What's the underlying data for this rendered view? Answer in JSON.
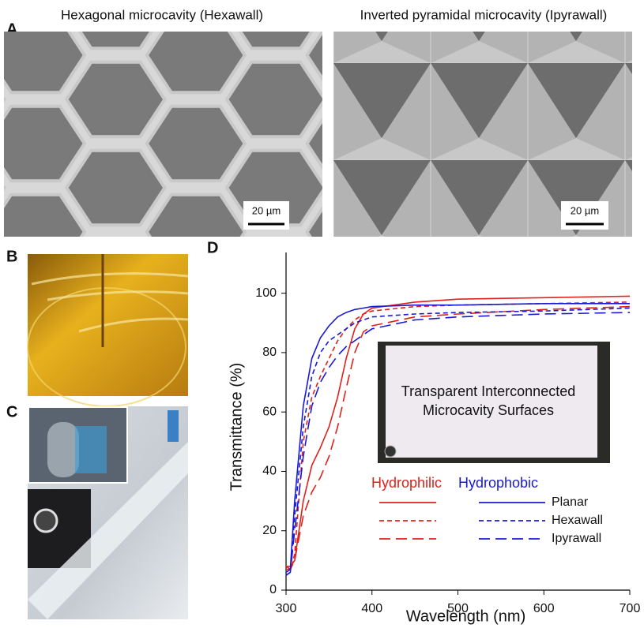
{
  "panels": {
    "a": {
      "label": "A",
      "left_title": "Hexagonal microcavity (Hexawall)",
      "right_title": "Inverted pyramidal microcavity (Ipyrawall)",
      "scale_bars": [
        "20 µm",
        "20 µm"
      ]
    },
    "b": {
      "label": "B"
    },
    "c": {
      "label": "C"
    },
    "d": {
      "label": "D"
    }
  },
  "chart_data": {
    "type": "line",
    "x_label": "Wavelength (nm)",
    "y_label": "Transmittance (%)",
    "annotation": [
      "Transparent Interconnected",
      "Microcavity Surfaces"
    ],
    "legend_columns": [
      "Hydrophilic",
      "Hydrophobic"
    ],
    "x": [
      300,
      305,
      310,
      320,
      330,
      340,
      350,
      360,
      370,
      380,
      390,
      400,
      450,
      500,
      600,
      700
    ],
    "xlim": [
      300,
      700
    ],
    "xticks": [
      300,
      400,
      500,
      600,
      700
    ],
    "ylim": [
      0,
      110
    ],
    "yticks": [
      0,
      20,
      40,
      60,
      80,
      100
    ],
    "series": [
      {
        "name": "Planar",
        "group": "Hydrophilic",
        "color": "#e0201b",
        "dash": "solid",
        "values": [
          8,
          8,
          10,
          30,
          42,
          48,
          55,
          65,
          78,
          88,
          93,
          95,
          97,
          98,
          98.5,
          99
        ]
      },
      {
        "name": "Hexawall",
        "group": "Hydrophilic",
        "color": "#e0201b",
        "dash": "short",
        "values": [
          7,
          7,
          12,
          50,
          65,
          72,
          78,
          84,
          88,
          91,
          93,
          94,
          95.5,
          96,
          96.5,
          97
        ]
      },
      {
        "name": "Ipyrawall",
        "group": "Hydrophilic",
        "color": "#e0201b",
        "dash": "long",
        "values": [
          8,
          7,
          10,
          25,
          33,
          38,
          45,
          55,
          68,
          80,
          87,
          89,
          92,
          93,
          94.5,
          95.5
        ]
      },
      {
        "name": "Planar",
        "group": "Hydrophobic",
        "color": "#1a1ad6",
        "dash": "solid",
        "values": [
          6,
          7,
          30,
          62,
          78,
          85,
          89,
          92,
          93.5,
          94.5,
          95,
          95.5,
          96,
          96,
          96.5,
          96.5
        ]
      },
      {
        "name": "Hexawall",
        "group": "Hydrophobic",
        "color": "#1a1ad6",
        "dash": "short",
        "values": [
          5,
          6,
          25,
          55,
          72,
          80,
          84,
          86,
          88,
          90,
          91,
          92,
          93,
          93.5,
          94,
          95
        ]
      },
      {
        "name": "Ipyrawall",
        "group": "Hydrophobic",
        "color": "#1a1ad6",
        "dash": "long",
        "values": [
          5,
          6,
          20,
          45,
          62,
          70,
          75,
          79,
          82,
          84,
          86,
          88,
          91,
          92,
          93,
          93.5
        ]
      }
    ]
  }
}
